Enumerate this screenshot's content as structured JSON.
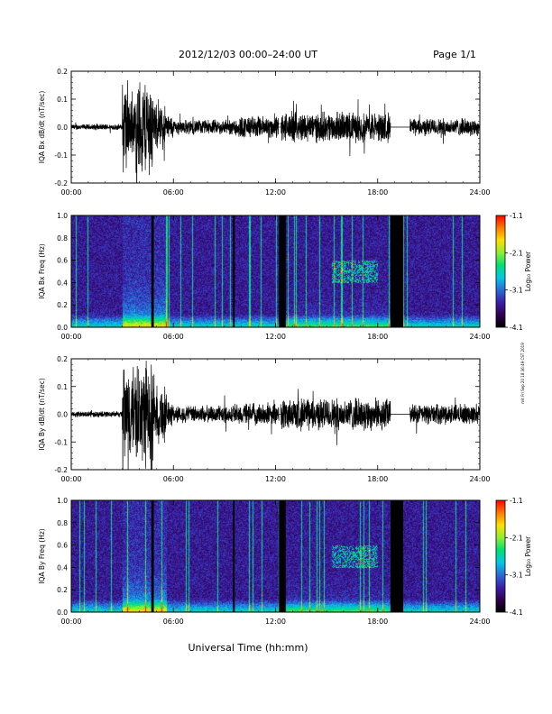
{
  "header": {
    "title": "2012/12/03  00:00–24:00 UT",
    "page": "Page 1/1"
  },
  "side_stamp": "mit Fri Sep 20 18:36:49 CST 2019",
  "x_axis_label": "Universal Time (hh:mm)",
  "chart_data": [
    {
      "type": "line",
      "ylabel": "IQA Bx dB/dt (nT/sec)",
      "x_range_hours": [
        0,
        24
      ],
      "ylim": [
        -0.2,
        0.2
      ],
      "yticks": [
        "0.2",
        "0.1",
        "0.0",
        "-0.1",
        "-0.2"
      ],
      "xticks": [
        "00:00",
        "06:00",
        "12:00",
        "18:00",
        "24:00"
      ],
      "data_gaps_hours": [
        [
          12.2,
          12.3
        ],
        [
          18.75,
          19.9
        ]
      ],
      "activity_profile": [
        {
          "start": 0,
          "end": 3.0,
          "amplitude": 0.012
        },
        {
          "start": 3.0,
          "end": 3.35,
          "amplitude": 0.2
        },
        {
          "start": 3.35,
          "end": 3.8,
          "amplitude": 0.12
        },
        {
          "start": 3.8,
          "end": 4.8,
          "amplitude": 0.2
        },
        {
          "start": 4.8,
          "end": 5.6,
          "amplitude": 0.09
        },
        {
          "start": 5.6,
          "end": 6.0,
          "amplitude": 0.05
        },
        {
          "start": 6.0,
          "end": 9.5,
          "amplitude": 0.03
        },
        {
          "start": 9.5,
          "end": 12.2,
          "amplitude": 0.045
        },
        {
          "start": 12.3,
          "end": 18.75,
          "amplitude": 0.06
        },
        {
          "start": 19.9,
          "end": 24.0,
          "amplitude": 0.035
        }
      ]
    },
    {
      "type": "heatmap",
      "ylabel": "IQA Bx Freq (Hz)",
      "x_range_hours": [
        0,
        24
      ],
      "ylim": [
        0.0,
        1.0
      ],
      "yticks": [
        "1.0",
        "0.8",
        "0.6",
        "0.4",
        "0.2",
        "0.0"
      ],
      "xticks": [
        "00:00",
        "06:00",
        "12:00",
        "18:00",
        "24:00"
      ],
      "colorbar": {
        "label": "Log₁₀ Power",
        "range": [
          -4.1,
          -1.1
        ],
        "ticks": [
          "-1.1",
          "-2.1",
          "-3.1",
          "-4.1"
        ]
      },
      "data_gaps_hours": [
        [
          4.7,
          4.85
        ],
        [
          9.5,
          9.6
        ],
        [
          12.2,
          12.6
        ],
        [
          18.75,
          19.5
        ]
      ],
      "pulsation_feature": {
        "start_hour": 15.3,
        "end_hour": 18.0,
        "freq_hz": [
          0.4,
          0.6
        ]
      }
    },
    {
      "type": "line",
      "ylabel": "IQA By dB/dt (nT/sec)",
      "x_range_hours": [
        0,
        24
      ],
      "ylim": [
        -0.2,
        0.2
      ],
      "yticks": [
        "0.2",
        "0.1",
        "0.0",
        "-0.1",
        "-0.2"
      ],
      "xticks": [
        "00:00",
        "06:00",
        "12:00",
        "18:00",
        "24:00"
      ],
      "data_gaps_hours": [
        [
          12.2,
          12.3
        ],
        [
          18.75,
          19.9
        ]
      ],
      "activity_profile": [
        {
          "start": 0,
          "end": 3.0,
          "amplitude": 0.012
        },
        {
          "start": 3.0,
          "end": 3.5,
          "amplitude": 0.2
        },
        {
          "start": 3.5,
          "end": 4.8,
          "amplitude": 0.2
        },
        {
          "start": 4.8,
          "end": 5.6,
          "amplitude": 0.12
        },
        {
          "start": 5.6,
          "end": 6.0,
          "amplitude": 0.05
        },
        {
          "start": 6.0,
          "end": 9.5,
          "amplitude": 0.035
        },
        {
          "start": 9.5,
          "end": 12.2,
          "amplitude": 0.045
        },
        {
          "start": 12.3,
          "end": 18.75,
          "amplitude": 0.065
        },
        {
          "start": 19.9,
          "end": 24.0,
          "amplitude": 0.04
        }
      ]
    },
    {
      "type": "heatmap",
      "ylabel": "IQA By Freq (Hz)",
      "x_range_hours": [
        0,
        24
      ],
      "ylim": [
        0.0,
        1.0
      ],
      "yticks": [
        "1.0",
        "0.8",
        "0.6",
        "0.4",
        "0.2",
        "0.0"
      ],
      "xticks": [
        "00:00",
        "06:00",
        "12:00",
        "18:00",
        "24:00"
      ],
      "colorbar": {
        "label": "Log₁₀ Power",
        "range": [
          -4.1,
          -1.1
        ],
        "ticks": [
          "-1.1",
          "-2.1",
          "-3.1",
          "-4.1"
        ]
      },
      "data_gaps_hours": [
        [
          4.7,
          4.85
        ],
        [
          9.5,
          9.6
        ],
        [
          12.2,
          12.6
        ],
        [
          18.75,
          19.5
        ]
      ],
      "pulsation_feature": {
        "start_hour": 15.3,
        "end_hour": 18.0,
        "freq_hz": [
          0.4,
          0.6
        ]
      }
    }
  ],
  "colors": {
    "trace": "#000000",
    "gap": "#000000",
    "colormap": [
      "#000000",
      "#300050",
      "#3b1fa8",
      "#2a6bd8",
      "#00c8e6",
      "#00e070",
      "#90ee30",
      "#ffe000",
      "#ff7a00",
      "#ff0000"
    ]
  }
}
